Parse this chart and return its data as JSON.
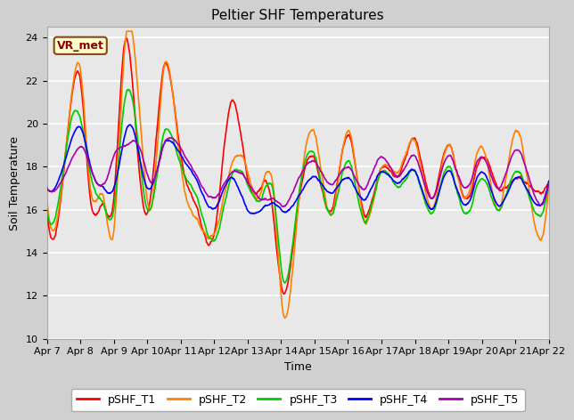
{
  "title": "Peltier SHF Temperatures",
  "xlabel": "Time",
  "ylabel": "Soil Temperature",
  "ylim": [
    10,
    24.5
  ],
  "yticks": [
    10,
    12,
    14,
    16,
    18,
    20,
    22,
    24
  ],
  "annotation_text": "VR_met",
  "legend_labels": [
    "pSHF_T1",
    "pSHF_T2",
    "pSHF_T3",
    "pSHF_T4",
    "pSHF_T5"
  ],
  "line_colors": [
    "#ff0000",
    "#ff8000",
    "#00cc00",
    "#0000ff",
    "#aa00aa"
  ],
  "line_width": 1.2,
  "fig_bg_color": "#d0d0d0",
  "plot_bg_color": "#e8e8e8",
  "grid_color": "#ffffff",
  "xtick_labels": [
    "Apr 7",
    "Apr 8",
    "Apr 9",
    "Apr 10",
    "Apr 11",
    "Apr 12",
    "Apr 13",
    "Apr 14",
    "Apr 15",
    "Apr 16",
    "Apr 17",
    "Apr 18",
    "Apr 19",
    "Apr 20",
    "Apr 21",
    "Apr 22"
  ],
  "title_fontsize": 11,
  "axis_fontsize": 9,
  "tick_fontsize": 8,
  "legend_fontsize": 9
}
